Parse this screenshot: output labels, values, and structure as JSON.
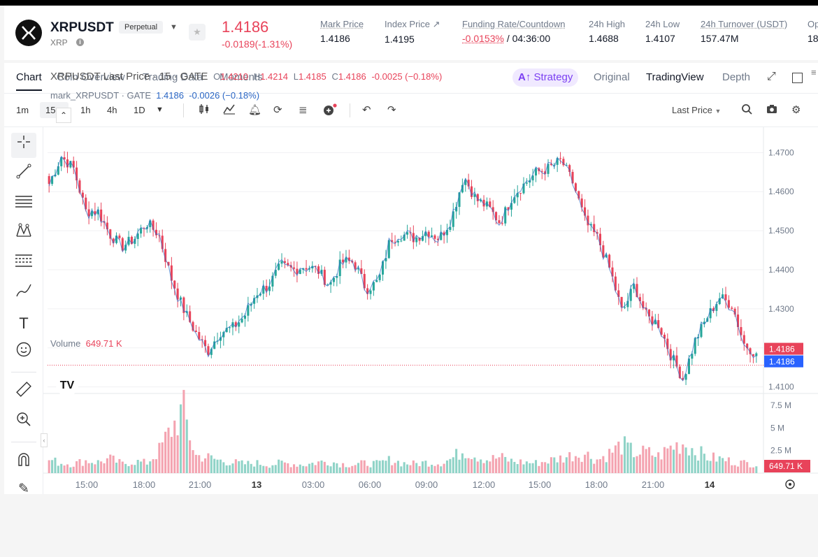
{
  "header": {
    "symbol": "XRPUSDT",
    "contract_type": "Perpetual",
    "coin": "XRP",
    "last_price": "1.4186",
    "change": "-0.0189(-1.31%)",
    "stats": [
      {
        "label": "Mark Price",
        "value": "1.4186"
      },
      {
        "label": "Index Price ↗",
        "value": "1.4195"
      },
      {
        "label": "Funding Rate/Countdown",
        "value_rate": "-0.0153%",
        "value_time": "/ 04:36:00"
      },
      {
        "label": "24h High",
        "value": "1.4688"
      },
      {
        "label": "24h Low",
        "value": "1.4107"
      },
      {
        "label": "24h Turnover (USDT)",
        "value": "157.47M"
      },
      {
        "label": "Op",
        "value": "18"
      }
    ]
  },
  "tabs": [
    "Chart",
    "Coin Overview",
    "Trading Data",
    "Moments"
  ],
  "view_tabs": {
    "strategy": "Strategy",
    "original": "Original",
    "tradingview": "TradingView",
    "depth": "Depth"
  },
  "toolbar": {
    "intervals": [
      "1m",
      "15m",
      "1h",
      "4h",
      "1D"
    ],
    "price_type": "Last Price"
  },
  "legend": {
    "main_prefix": "XRPUSDT Last Price · 15 · GATE",
    "o_label": "O",
    "o": "1.4210",
    "h_label": "H",
    "h": "1.4214",
    "l_label": "L",
    "l": "1.4185",
    "c_label": "C",
    "c": "1.4186",
    "change": "-0.0025 (−0.18%)",
    "mark_prefix": "mark_XRPUSDT · GATE",
    "mark_value": "1.4186",
    "mark_change": "-0.0026 (−0.18%)"
  },
  "volume": {
    "label": "Volume",
    "value": "649.71 K"
  },
  "colors": {
    "up": "#26a69a",
    "down": "#e8435a",
    "mark": "#2a66c4"
  },
  "chart_data": {
    "type": "candlestick",
    "interval": "15m",
    "price_axis": [
      "1.4700",
      "1.4600",
      "1.4500",
      "1.4400",
      "1.4300",
      "1.4200",
      "1.4100"
    ],
    "ylim": [
      1.4085,
      1.4765
    ],
    "last_price_label": "1.4186",
    "mark_price_label": "1.4186",
    "volume_axis": [
      "7.5 M",
      "5 M",
      "2.5 M"
    ],
    "volume_last_label": "649.71 K",
    "x_ticks": [
      "15:00",
      "18:00",
      "21:00",
      "13",
      "03:00",
      "06:00",
      "09:00",
      "12:00",
      "15:00",
      "18:00",
      "21:00",
      "14"
    ],
    "close_path": [
      1.462,
      1.469,
      1.466,
      1.455,
      1.455,
      1.449,
      1.446,
      1.448,
      1.452,
      1.449,
      1.438,
      1.43,
      1.424,
      1.419,
      1.424,
      1.425,
      1.428,
      1.434,
      1.436,
      1.441,
      1.44,
      1.441,
      1.44,
      1.436,
      1.442,
      1.442,
      1.435,
      1.437,
      1.448,
      1.449,
      1.448,
      1.45,
      1.448,
      1.453,
      1.464,
      1.458,
      1.456,
      1.452,
      1.459,
      1.462,
      1.465,
      1.466,
      1.468,
      1.462,
      1.452,
      1.448,
      1.44,
      1.429,
      1.436,
      1.428,
      1.426,
      1.418,
      1.412,
      1.422,
      1.428,
      1.433,
      1.431,
      1.421,
      1.4186
    ],
    "volume_path": [
      1.6,
      1.2,
      1.1,
      1.5,
      1.3,
      1.7,
      1.1,
      1.4,
      1.2,
      2.6,
      5.2,
      7.5,
      2.1,
      1.9,
      1.5,
      1.3,
      1.1,
      1.2,
      1.0,
      1.2,
      1.1,
      1.0,
      1.3,
      1.4,
      1.1,
      1.0,
      1.2,
      1.1,
      1.6,
      1.2,
      1.1,
      1.3,
      1.2,
      1.7,
      2.8,
      2.1,
      1.6,
      1.9,
      1.4,
      1.3,
      1.2,
      1.5,
      1.8,
      2.2,
      2.3,
      1.6,
      2.4,
      3.4,
      2.4,
      2.5,
      2.0,
      3.1,
      3.6,
      2.7,
      1.9,
      1.7,
      1.4,
      1.2,
      1.1
    ]
  }
}
